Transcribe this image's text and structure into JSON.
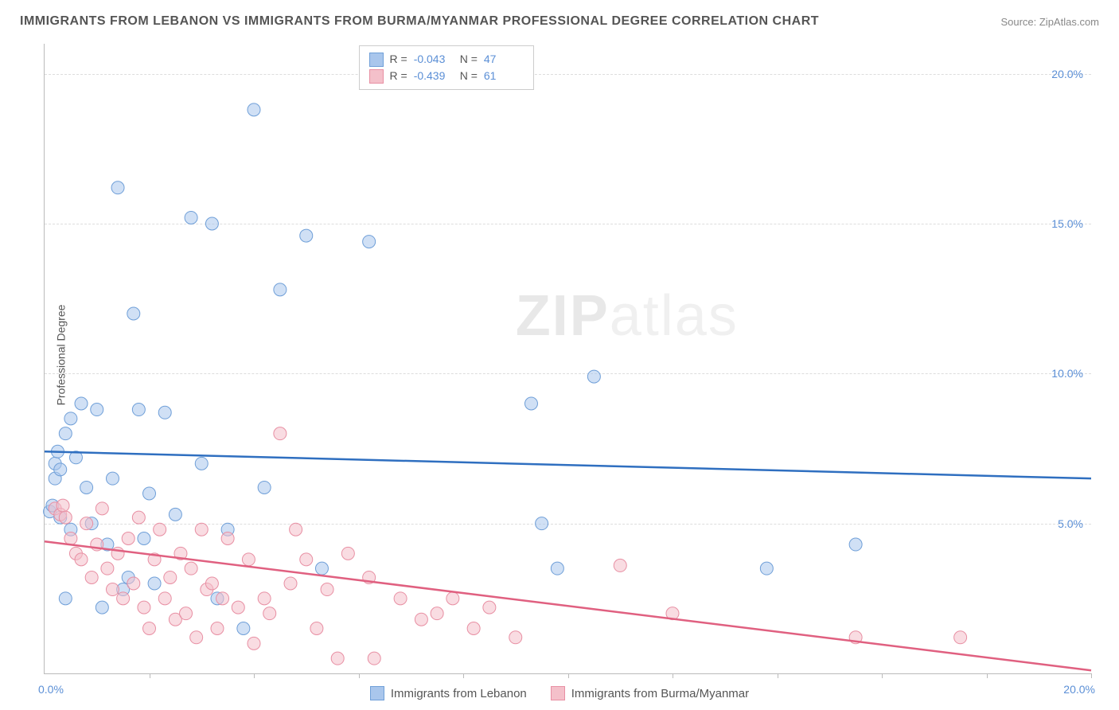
{
  "title": "IMMIGRANTS FROM LEBANON VS IMMIGRANTS FROM BURMA/MYANMAR PROFESSIONAL DEGREE CORRELATION CHART",
  "source": "Source: ZipAtlas.com",
  "ylabel": "Professional Degree",
  "watermark_bold": "ZIP",
  "watermark_light": "atlas",
  "chart": {
    "type": "scatter",
    "xlim": [
      0,
      20
    ],
    "ylim": [
      0,
      21
    ],
    "xmin_label": "0.0%",
    "xmax_label": "20.0%",
    "yticks": [
      {
        "v": 5,
        "label": "5.0%"
      },
      {
        "v": 10,
        "label": "10.0%"
      },
      {
        "v": 15,
        "label": "15.0%"
      },
      {
        "v": 20,
        "label": "20.0%"
      }
    ],
    "xtick_positions": [
      2,
      4,
      6,
      8,
      10,
      12,
      14,
      16,
      18,
      20
    ],
    "grid_color": "#dddddd",
    "background": "#ffffff",
    "marker_radius": 8,
    "marker_opacity": 0.55,
    "line_width": 2.5,
    "series": [
      {
        "name": "Immigrants from Lebanon",
        "color_fill": "#a9c6ec",
        "color_stroke": "#6f9fd8",
        "line_color": "#2f6fc0",
        "R": "-0.043",
        "N": "47",
        "trend": {
          "x1": 0,
          "y1": 7.4,
          "x2": 20,
          "y2": 6.5
        },
        "points": [
          [
            0.1,
            5.4
          ],
          [
            0.15,
            5.6
          ],
          [
            0.2,
            6.5
          ],
          [
            0.2,
            7.0
          ],
          [
            0.25,
            7.4
          ],
          [
            0.3,
            6.8
          ],
          [
            0.3,
            5.2
          ],
          [
            0.4,
            8.0
          ],
          [
            0.5,
            8.5
          ],
          [
            0.5,
            4.8
          ],
          [
            0.6,
            7.2
          ],
          [
            0.7,
            9.0
          ],
          [
            0.8,
            6.2
          ],
          [
            0.9,
            5.0
          ],
          [
            1.0,
            8.8
          ],
          [
            1.1,
            2.2
          ],
          [
            1.2,
            4.3
          ],
          [
            1.3,
            6.5
          ],
          [
            1.4,
            16.2
          ],
          [
            1.5,
            2.8
          ],
          [
            1.7,
            12.0
          ],
          [
            1.8,
            8.8
          ],
          [
            1.9,
            4.5
          ],
          [
            2.0,
            6.0
          ],
          [
            2.1,
            3.0
          ],
          [
            2.3,
            8.7
          ],
          [
            2.5,
            5.3
          ],
          [
            2.8,
            15.2
          ],
          [
            3.0,
            7.0
          ],
          [
            3.2,
            15.0
          ],
          [
            3.3,
            2.5
          ],
          [
            3.5,
            4.8
          ],
          [
            3.8,
            1.5
          ],
          [
            4.0,
            18.8
          ],
          [
            4.2,
            6.2
          ],
          [
            4.5,
            12.8
          ],
          [
            5.0,
            14.6
          ],
          [
            5.3,
            3.5
          ],
          [
            6.2,
            14.4
          ],
          [
            9.3,
            9.0
          ],
          [
            9.5,
            5.0
          ],
          [
            9.8,
            3.5
          ],
          [
            10.5,
            9.9
          ],
          [
            13.8,
            3.5
          ],
          [
            15.5,
            4.3
          ],
          [
            0.4,
            2.5
          ],
          [
            1.6,
            3.2
          ]
        ]
      },
      {
        "name": "Immigrants from Burma/Myanmar",
        "color_fill": "#f4c0ca",
        "color_stroke": "#e88fa3",
        "line_color": "#e06080",
        "R": "-0.439",
        "N": "61",
        "trend": {
          "x1": 0,
          "y1": 4.4,
          "x2": 20,
          "y2": 0.1
        },
        "points": [
          [
            0.2,
            5.5
          ],
          [
            0.3,
            5.3
          ],
          [
            0.35,
            5.6
          ],
          [
            0.4,
            5.2
          ],
          [
            0.5,
            4.5
          ],
          [
            0.6,
            4.0
          ],
          [
            0.7,
            3.8
          ],
          [
            0.8,
            5.0
          ],
          [
            0.9,
            3.2
          ],
          [
            1.0,
            4.3
          ],
          [
            1.1,
            5.5
          ],
          [
            1.2,
            3.5
          ],
          [
            1.3,
            2.8
          ],
          [
            1.4,
            4.0
          ],
          [
            1.5,
            2.5
          ],
          [
            1.6,
            4.5
          ],
          [
            1.7,
            3.0
          ],
          [
            1.8,
            5.2
          ],
          [
            1.9,
            2.2
          ],
          [
            2.0,
            1.5
          ],
          [
            2.1,
            3.8
          ],
          [
            2.2,
            4.8
          ],
          [
            2.3,
            2.5
          ],
          [
            2.4,
            3.2
          ],
          [
            2.5,
            1.8
          ],
          [
            2.6,
            4.0
          ],
          [
            2.7,
            2.0
          ],
          [
            2.8,
            3.5
          ],
          [
            2.9,
            1.2
          ],
          [
            3.0,
            4.8
          ],
          [
            3.1,
            2.8
          ],
          [
            3.2,
            3.0
          ],
          [
            3.3,
            1.5
          ],
          [
            3.5,
            4.5
          ],
          [
            3.7,
            2.2
          ],
          [
            3.9,
            3.8
          ],
          [
            4.0,
            1.0
          ],
          [
            4.2,
            2.5
          ],
          [
            4.5,
            8.0
          ],
          [
            4.7,
            3.0
          ],
          [
            4.8,
            4.8
          ],
          [
            5.0,
            3.8
          ],
          [
            5.2,
            1.5
          ],
          [
            5.4,
            2.8
          ],
          [
            5.6,
            0.5
          ],
          [
            5.8,
            4.0
          ],
          [
            6.2,
            3.2
          ],
          [
            6.3,
            0.5
          ],
          [
            6.8,
            2.5
          ],
          [
            7.2,
            1.8
          ],
          [
            7.5,
            2.0
          ],
          [
            7.8,
            2.5
          ],
          [
            8.2,
            1.5
          ],
          [
            8.5,
            2.2
          ],
          [
            9.0,
            1.2
          ],
          [
            11.0,
            3.6
          ],
          [
            12.0,
            2.0
          ],
          [
            15.5,
            1.2
          ],
          [
            17.5,
            1.2
          ],
          [
            4.3,
            2.0
          ],
          [
            3.4,
            2.5
          ]
        ]
      }
    ]
  },
  "legend_top": {
    "R_label": "R =",
    "N_label": "N ="
  },
  "style": {
    "title_fontsize": 16,
    "title_color": "#555555",
    "axis_label_fontsize": 14,
    "tick_color": "#5b8fd6",
    "border_color": "#bbbbbb"
  }
}
